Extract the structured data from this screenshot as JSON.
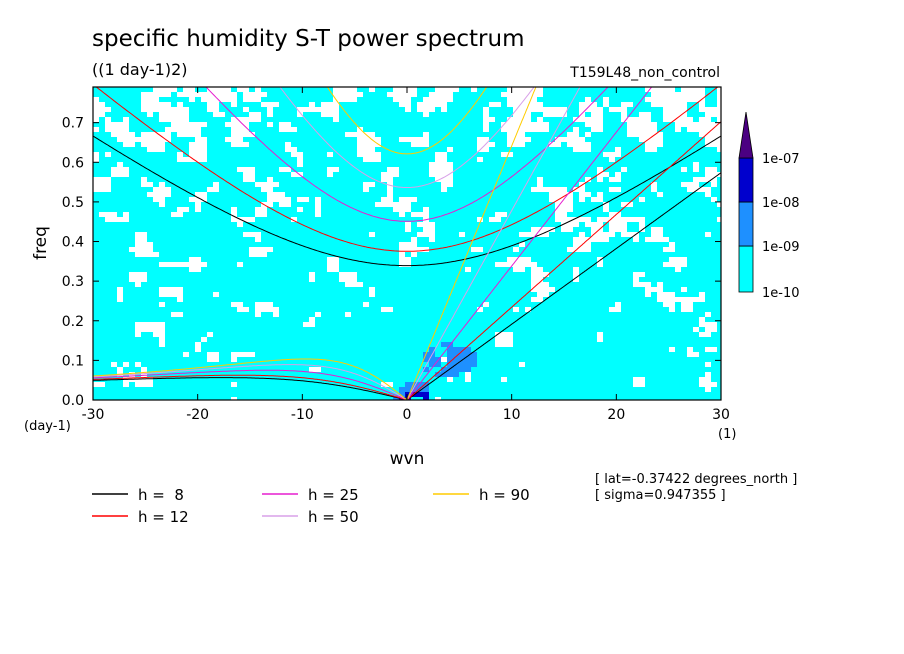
{
  "chart_data": {
    "type": "heatmap",
    "title": "specific humidity S-T power spectrum",
    "subtitle": "((1 day-1)2)",
    "run_label": "T159L48_non_control",
    "xlabel": "wvn",
    "ylabel": "freq",
    "x_unit": "(1)",
    "y_unit": "(day-1)",
    "xlim": [
      -30,
      30
    ],
    "ylim": [
      0,
      0.79
    ],
    "x_ticks": [
      -30,
      -20,
      -10,
      0,
      10,
      20,
      30
    ],
    "x_tick_labels": [
      "-30",
      "-20",
      "-10",
      "0",
      "10",
      "20",
      "30"
    ],
    "y_ticks": [
      0,
      0.1,
      0.2,
      0.3,
      0.4,
      0.5,
      0.6,
      0.7
    ],
    "y_tick_labels": [
      "0.0",
      "0.1",
      "0.2",
      "0.3",
      "0.4",
      "0.5",
      "0.6",
      "0.7"
    ],
    "colorbar": {
      "levels": [
        "1e-10",
        "1e-09",
        "1e-08",
        "1e-07"
      ],
      "colors": [
        "#00ffff",
        "#1e90ff",
        "#0000cd",
        "#4b0082"
      ]
    },
    "dispersion_curves": [
      {
        "label": "h =  8",
        "h": 8,
        "color": "#000000"
      },
      {
        "label": "h = 12",
        "h": 12,
        "color": "#ff0000"
      },
      {
        "label": "h = 25",
        "h": 25,
        "color": "#e61ecf"
      },
      {
        "label": "h = 50",
        "h": 50,
        "color": "#d8a0e8"
      },
      {
        "label": "h = 90",
        "h": 90,
        "color": "#ffcc00"
      }
    ],
    "annotations": [
      "[ lat=-0.37422 degrees_north ]",
      "[ sigma=0.947355 ]"
    ]
  }
}
